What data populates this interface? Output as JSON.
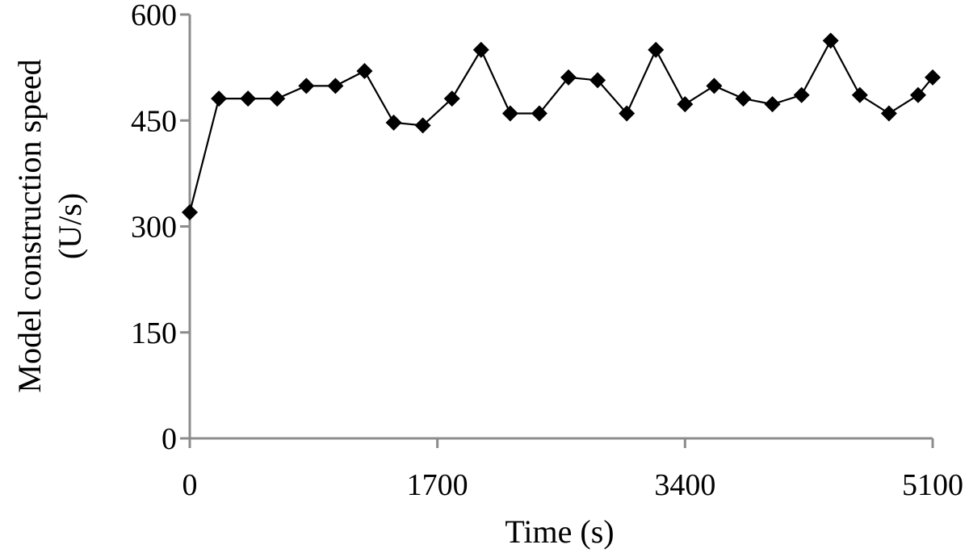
{
  "chart_data": {
    "type": "line",
    "title": "",
    "xlabel": "Time (s)",
    "ylabel_lines": [
      "Model construction speed",
      "(U/s)"
    ],
    "xlim": [
      0,
      5100
    ],
    "ylim": [
      0,
      600
    ],
    "x_ticks": [
      0,
      1700,
      3400,
      5100
    ],
    "y_ticks": [
      0,
      150,
      300,
      450,
      600
    ],
    "grid": false,
    "legend": "none",
    "marker": "diamond",
    "colors": {
      "line": "#000000",
      "marker": "#000000",
      "axis": "#8c8c8c"
    },
    "series": [
      {
        "x": [
          0,
          200,
          400,
          600,
          800,
          1000,
          1200,
          1400,
          1600,
          1800,
          2000,
          2200,
          2400,
          2600,
          2800,
          3000,
          3200,
          3400,
          3600,
          3800,
          4000,
          4200,
          4400,
          4600,
          4800,
          5000,
          5100
        ],
        "y": [
          320,
          481,
          481,
          481,
          499,
          499,
          520,
          447,
          443,
          481,
          550,
          460,
          460,
          511,
          507,
          460,
          550,
          473,
          499,
          481,
          473,
          486,
          563,
          486,
          460,
          486,
          511
        ]
      }
    ]
  }
}
